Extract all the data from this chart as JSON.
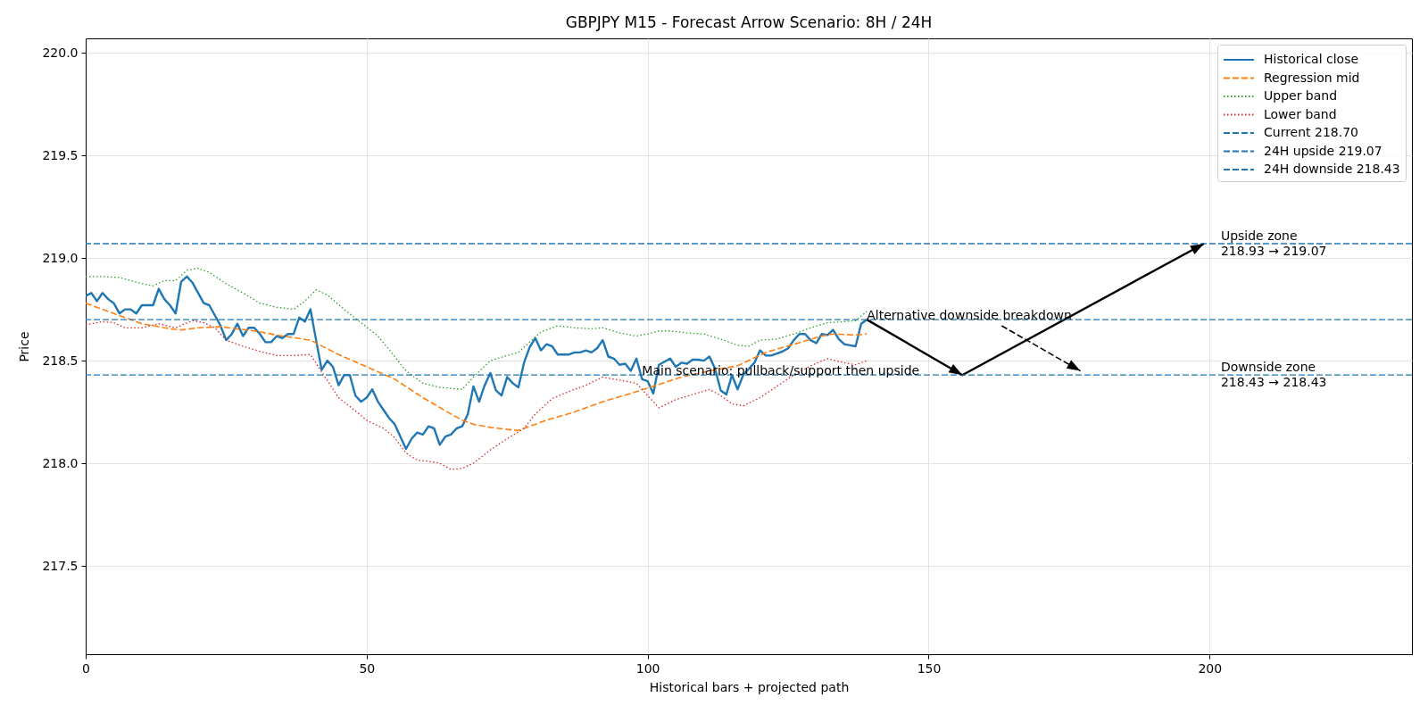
{
  "chart_data": {
    "type": "line",
    "title": "GBPJPY M15 - Forecast Arrow Scenario: 8H / 24H",
    "xlabel": "Historical bars + projected path",
    "ylabel": "Price",
    "xlim": [
      0,
      236
    ],
    "ylim": [
      217.07,
      220.07
    ],
    "xticks": [
      0,
      50,
      100,
      150,
      200
    ],
    "yticks": [
      217.5,
      {
        "value": 218,
        "label": "218.0"
      },
      218.5,
      {
        "value": 219,
        "label": "219.0"
      },
      219.5,
      {
        "value": 220,
        "label": "220.0"
      }
    ],
    "grid": true,
    "legend": "top right",
    "series": [
      {
        "name": "Historical close",
        "color": "#1f77b4",
        "line_style": "solid",
        "x": [
          0,
          1,
          2,
          3,
          4,
          5,
          6,
          7,
          8,
          9,
          10,
          11,
          12,
          13,
          14,
          15,
          16,
          17,
          18,
          19,
          20,
          21,
          22,
          23,
          24,
          25,
          26,
          27,
          28,
          29,
          30,
          31,
          32,
          33,
          34,
          35,
          36,
          37,
          38,
          39,
          40,
          41,
          42,
          43,
          44,
          45,
          46,
          47,
          48,
          49,
          50,
          51,
          52,
          53,
          54,
          55,
          56,
          57,
          58,
          59,
          60,
          61,
          62,
          63,
          64,
          65,
          66,
          67,
          68,
          69,
          70,
          71,
          72,
          73,
          74,
          75,
          76,
          77,
          78,
          79,
          80,
          81,
          82,
          83,
          84,
          85,
          86,
          87,
          88,
          89,
          90,
          91,
          92,
          93,
          94,
          95,
          96,
          97,
          98,
          99,
          100,
          101,
          102,
          103,
          104,
          105,
          106,
          107,
          108,
          109,
          110,
          111,
          112,
          113,
          114,
          115,
          116,
          117,
          118,
          119,
          120,
          121,
          122,
          123,
          124,
          125,
          126,
          127,
          128,
          129,
          130,
          131,
          132,
          133,
          134,
          135,
          136,
          137,
          138,
          139
        ],
        "values": [
          218.815,
          218.83,
          218.79,
          218.83,
          218.8,
          218.78,
          218.73,
          218.75,
          218.75,
          218.73,
          218.77,
          218.77,
          218.77,
          218.85,
          218.8,
          218.77,
          218.73,
          218.885,
          218.91,
          218.88,
          218.83,
          218.78,
          218.77,
          218.72,
          218.67,
          218.6,
          218.63,
          218.68,
          218.62,
          218.66,
          218.66,
          218.63,
          218.59,
          218.59,
          218.62,
          218.61,
          218.63,
          218.63,
          218.71,
          218.69,
          218.75,
          218.6,
          218.455,
          218.5,
          218.47,
          218.38,
          218.43,
          218.43,
          218.33,
          218.3,
          218.32,
          218.36,
          218.3,
          218.26,
          218.22,
          218.19,
          218.13,
          218.07,
          218.12,
          218.15,
          218.14,
          218.18,
          218.17,
          218.09,
          218.13,
          218.14,
          218.17,
          218.18,
          218.24,
          218.375,
          218.3,
          218.38,
          218.44,
          218.355,
          218.33,
          218.42,
          218.39,
          218.37,
          218.49,
          218.565,
          218.61,
          218.55,
          218.58,
          218.57,
          218.53,
          218.53,
          218.53,
          218.54,
          218.54,
          218.55,
          218.54,
          218.56,
          218.6,
          218.52,
          218.51,
          218.48,
          218.485,
          218.45,
          218.51,
          218.41,
          218.4,
          218.34,
          218.48,
          218.495,
          218.51,
          218.47,
          218.49,
          218.485,
          218.505,
          218.505,
          218.5,
          218.52,
          218.46,
          218.355,
          218.335,
          218.43,
          218.36,
          218.43,
          218.46,
          218.49,
          218.55,
          218.525,
          218.525,
          218.535,
          218.545,
          218.56,
          218.6,
          218.63,
          218.63,
          218.6,
          218.585,
          218.63,
          218.625,
          218.65,
          218.605,
          218.58,
          218.575,
          218.57,
          218.68,
          218.7
        ]
      },
      {
        "name": "Regression mid",
        "color": "#ff7f0e",
        "line_style": "dashed",
        "x": [
          0,
          5,
          10,
          15,
          17,
          20,
          24,
          30,
          35,
          40,
          45,
          50,
          55,
          60,
          65,
          67,
          69,
          72,
          75,
          77,
          78,
          82,
          87,
          92,
          97,
          101,
          106,
          111,
          116,
          121,
          126,
          131,
          133,
          137,
          139
        ],
        "values": [
          218.78,
          218.73,
          218.68,
          218.655,
          218.65,
          218.66,
          218.665,
          218.645,
          218.62,
          218.6,
          218.53,
          218.47,
          218.41,
          218.32,
          218.24,
          218.21,
          218.19,
          218.175,
          218.165,
          218.16,
          218.17,
          218.21,
          218.25,
          218.3,
          218.34,
          218.375,
          218.42,
          218.45,
          218.475,
          218.54,
          218.58,
          218.62,
          218.63,
          218.625,
          218.63
        ]
      },
      {
        "name": "Upper band",
        "color": "#2ca02c",
        "line_style": "dotted",
        "x": [
          0,
          3,
          6,
          10,
          12,
          14,
          16,
          18,
          20,
          22,
          25,
          28,
          31,
          34,
          37,
          39,
          41,
          43,
          46,
          49,
          52,
          55,
          57,
          60,
          63,
          67,
          69,
          72,
          75,
          77,
          79,
          81,
          84,
          87,
          90,
          92,
          95,
          98,
          100,
          102,
          104,
          107,
          110,
          113,
          116,
          118,
          120,
          123,
          126,
          129,
          132,
          135,
          137,
          139
        ],
        "values": [
          218.91,
          218.91,
          218.905,
          218.875,
          218.865,
          218.89,
          218.89,
          218.94,
          218.95,
          218.93,
          218.875,
          218.83,
          218.78,
          218.76,
          218.75,
          218.79,
          218.845,
          218.82,
          218.75,
          218.685,
          218.62,
          218.52,
          218.45,
          218.39,
          218.37,
          218.36,
          218.42,
          218.5,
          218.525,
          218.54,
          218.59,
          218.64,
          218.67,
          218.66,
          218.655,
          218.66,
          218.635,
          218.62,
          218.63,
          218.645,
          218.645,
          218.635,
          218.63,
          218.605,
          218.575,
          218.57,
          218.6,
          218.605,
          218.63,
          218.66,
          218.685,
          218.69,
          218.695,
          218.74
        ]
      },
      {
        "name": "Lower band",
        "color": "#d62728",
        "line_style": "dotted",
        "x": [
          0,
          3,
          5,
          7,
          10,
          13,
          16,
          19,
          21,
          23,
          25,
          28,
          31,
          34,
          37,
          40,
          42,
          45,
          48,
          50,
          53,
          55,
          57,
          59,
          61,
          63,
          65,
          67,
          69,
          72,
          75,
          78,
          80,
          83,
          86,
          89,
          92,
          95,
          98,
          100,
          102,
          105,
          108,
          111,
          113,
          115,
          117,
          120,
          123,
          126,
          129,
          132,
          135,
          137,
          139
        ],
        "values": [
          218.675,
          218.69,
          218.685,
          218.66,
          218.66,
          218.68,
          218.66,
          218.695,
          218.685,
          218.66,
          218.6,
          218.57,
          218.545,
          218.525,
          218.525,
          218.53,
          218.445,
          218.32,
          218.255,
          218.21,
          218.17,
          218.125,
          218.05,
          218.015,
          218.01,
          218.0,
          217.97,
          217.975,
          218.0,
          218.065,
          218.12,
          218.17,
          218.24,
          218.315,
          218.35,
          218.38,
          218.42,
          218.405,
          218.39,
          218.33,
          218.27,
          218.31,
          218.335,
          218.36,
          218.33,
          218.29,
          218.28,
          218.32,
          218.375,
          218.43,
          218.475,
          218.51,
          218.49,
          218.48,
          218.5
        ]
      },
      {
        "color": "#000000",
        "line_style": "solid",
        "x": [
          139,
          156,
          199
        ],
        "values": [
          218.7,
          218.43,
          219.07
        ]
      },
      {
        "color": "#000000",
        "line_style": "dashed",
        "x": [
          163,
          177
        ],
        "values": [
          218.67,
          218.45
        ]
      }
    ],
    "ref_lines": [
      {
        "axis": "y",
        "value": 218.7,
        "label": "Current 218.70",
        "color": "#1f77b4",
        "line_style": "dashed"
      },
      {
        "axis": "y",
        "value": 219.07,
        "label": "24H upside 219.07",
        "color": "#1f77b4",
        "line_style": "dashed"
      },
      {
        "axis": "y",
        "value": 218.43,
        "label": "24H downside 218.43",
        "color": "#1f77b4",
        "line_style": "dashed"
      }
    ],
    "annotations": [
      {
        "text": "Main scenario: pullback/support then upside",
        "x": 99,
        "y": 218.45
      },
      {
        "text": "Alternative downside breakdown",
        "x": 139,
        "y": 218.72
      },
      {
        "text": "Upside zone\n218.93 → 219.07",
        "x": 202,
        "y": 219.07
      },
      {
        "text": "Downside zone\n218.43 → 218.43",
        "x": 202,
        "y": 218.43
      }
    ]
  }
}
